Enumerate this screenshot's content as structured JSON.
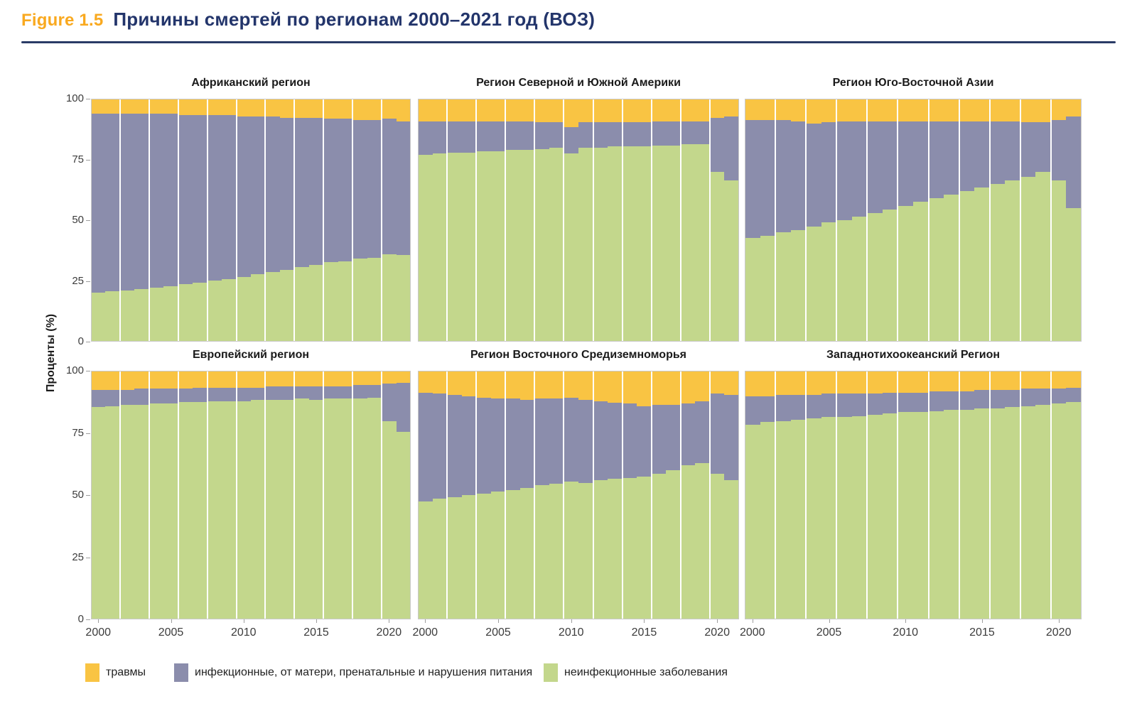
{
  "header": {
    "figure_label": "Figure 1.5",
    "title": "Причины смертей по регионам 2000–2021 год (ВОЗ)"
  },
  "colors": {
    "accent_orange": "#F9A91F",
    "navy": "#23356B",
    "plot_border": "#C9C9C9",
    "injuries": "#F9C443",
    "infectious": "#8B8DAC",
    "noncommunicable": "#C3D78C"
  },
  "chart_data": {
    "type": "bar",
    "stacked": true,
    "unit": "percent of deaths",
    "title": "Причины смертей по регионам 2000–2021 год (ВОЗ)",
    "ylabel": "Проценты (%)",
    "ylim": [
      0,
      100
    ],
    "y_ticks": [
      0,
      25,
      50,
      75,
      100
    ],
    "x_ticks": [
      2000,
      2005,
      2010,
      2015,
      2020
    ],
    "years": [
      2000,
      2001,
      2002,
      2003,
      2004,
      2005,
      2006,
      2007,
      2008,
      2009,
      2010,
      2011,
      2012,
      2013,
      2014,
      2015,
      2016,
      2017,
      2018,
      2019,
      2020,
      2021
    ],
    "legend": [
      {
        "label": "травмы",
        "color": "#F9C443"
      },
      {
        "label": "инфекционные, от матери, пренатальные и нарушения питания",
        "color": "#8B8DAC"
      },
      {
        "label": "неинфекционные заболевания",
        "color": "#C3D78C"
      }
    ],
    "regions": [
      {
        "title": "Африканский регион",
        "series": {
          "noncommunicable": [
            20,
            20.5,
            21,
            21.5,
            22,
            22.5,
            23.5,
            24,
            25,
            25.5,
            26.5,
            27.5,
            28.5,
            29.5,
            30.5,
            31.5,
            32.5,
            33,
            34,
            34.5,
            36,
            35.5
          ],
          "infectious_maternal": [
            74,
            73.5,
            73,
            72.5,
            72,
            71.5,
            70,
            69.5,
            68.5,
            68,
            66.5,
            65.5,
            64.5,
            63,
            62,
            61,
            59.5,
            59,
            57.5,
            57,
            56,
            55.5
          ],
          "injuries": [
            6,
            6,
            6,
            6,
            6,
            6,
            6.5,
            6.5,
            6.5,
            6.5,
            7,
            7,
            7,
            7.5,
            7.5,
            7.5,
            8,
            8,
            8.5,
            8.5,
            8,
            9
          ]
        }
      },
      {
        "title": "Регион Северной и Южной Америки",
        "series": {
          "noncommunicable": [
            77,
            77.5,
            78,
            78,
            78.5,
            78.5,
            79,
            79,
            79.5,
            80,
            77.5,
            80,
            80,
            80.5,
            80.5,
            80.5,
            81,
            81,
            81.5,
            81.5,
            70,
            66.5
          ],
          "infectious_maternal": [
            14,
            13.5,
            13,
            13,
            12.5,
            12.5,
            12,
            12,
            11,
            10.5,
            11,
            10.5,
            10.5,
            10,
            10,
            10,
            10,
            10,
            9.5,
            9.5,
            22.5,
            26.5
          ],
          "injuries": [
            9,
            9,
            9,
            9,
            9,
            9,
            9,
            9,
            9.5,
            9.5,
            11.5,
            9.5,
            9.5,
            9.5,
            9.5,
            9.5,
            9,
            9,
            9,
            9,
            7.5,
            7
          ]
        }
      },
      {
        "title": "Регион Юго-Восточной Азии",
        "series": {
          "noncommunicable": [
            42.5,
            43.5,
            45,
            46,
            47.5,
            49,
            50,
            51.5,
            53,
            54.5,
            56,
            57.5,
            59,
            60.5,
            62,
            63.5,
            65,
            66.5,
            68,
            70,
            66.5,
            55
          ],
          "infectious_maternal": [
            49,
            48,
            46.5,
            45,
            42.5,
            41.5,
            41,
            39.5,
            38,
            36.5,
            35,
            33.5,
            32,
            30.5,
            29,
            27.5,
            26,
            24.5,
            22.5,
            20.5,
            25,
            38
          ],
          "injuries": [
            8.5,
            8.5,
            8.5,
            9,
            10,
            9.5,
            9,
            9,
            9,
            9,
            9,
            9,
            9,
            9,
            9,
            9,
            9,
            9,
            9.5,
            9.5,
            8.5,
            7
          ]
        }
      },
      {
        "title": "Европейский регион",
        "series": {
          "noncommunicable": [
            85.5,
            86,
            86.5,
            86.5,
            87,
            87,
            87.5,
            87.5,
            88,
            88,
            88,
            88.5,
            88.5,
            88.5,
            89,
            88.5,
            89,
            89,
            89,
            89.5,
            80,
            75.5
          ],
          "infectious_maternal": [
            7,
            6.5,
            6,
            6.5,
            6,
            6,
            5.5,
            6,
            5.5,
            5.5,
            5.5,
            5,
            5.5,
            5.5,
            5,
            5.5,
            5,
            5,
            5.5,
            5,
            15,
            20
          ],
          "injuries": [
            7.5,
            7.5,
            7.5,
            7,
            7,
            7,
            7,
            6.5,
            6.5,
            6.5,
            6.5,
            6.5,
            6,
            6,
            6,
            6,
            6,
            6,
            5.5,
            5.5,
            5,
            4.5
          ]
        }
      },
      {
        "title": "Регион Восточного Средиземноморья",
        "series": {
          "noncommunicable": [
            47.5,
            48.5,
            49,
            50,
            50.5,
            51.5,
            52,
            53,
            54,
            54.5,
            55.5,
            55,
            56,
            56.5,
            57,
            57.5,
            58.5,
            60,
            62,
            63,
            58.5,
            56
          ],
          "infectious_maternal": [
            44,
            42.5,
            41.5,
            40,
            39,
            37.5,
            37,
            35.5,
            35,
            34.5,
            34,
            33.5,
            32,
            31,
            30,
            28.5,
            28,
            26.5,
            25,
            25,
            32.5,
            34.5
          ],
          "injuries": [
            8.5,
            9,
            9.5,
            10,
            10.5,
            11,
            11,
            11.5,
            11,
            11,
            10.5,
            11.5,
            12,
            12.5,
            13,
            14,
            13.5,
            13.5,
            13,
            12,
            9,
            9.5
          ]
        }
      },
      {
        "title": "Западнотихоокеанский Регион",
        "series": {
          "noncommunicable": [
            78.5,
            79.5,
            80,
            80.5,
            81,
            81.5,
            81.5,
            82,
            82.5,
            83,
            83.5,
            83.5,
            84,
            84.5,
            84.5,
            85,
            85,
            85.5,
            86,
            86.5,
            87,
            87.5
          ],
          "infectious_maternal": [
            11.5,
            10.5,
            10.5,
            10,
            9.5,
            9.5,
            9.5,
            9,
            8.5,
            8.5,
            8,
            8,
            8,
            7.5,
            7.5,
            7.5,
            7.5,
            7,
            7,
            6.5,
            6,
            6
          ],
          "injuries": [
            10,
            10,
            9.5,
            9.5,
            9.5,
            9,
            9,
            9,
            9,
            8.5,
            8.5,
            8.5,
            8,
            8,
            8,
            7.5,
            7.5,
            7.5,
            7,
            7,
            7,
            6.5
          ]
        }
      }
    ]
  }
}
